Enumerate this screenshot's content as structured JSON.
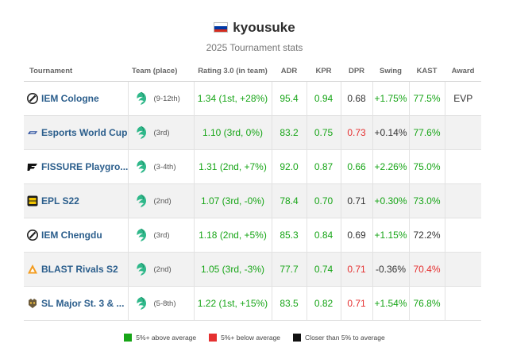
{
  "player": {
    "name": "kyousuke",
    "flag_colors": [
      "#ffffff",
      "#0039a6",
      "#d52b1e"
    ]
  },
  "subtitle": "2025 Tournament stats",
  "columns": {
    "tournament": "Tournament",
    "team": "Team (place)",
    "rating": "Rating 3.0 (in team)",
    "adr": "ADR",
    "kpr": "KPR",
    "dpr": "DPR",
    "swing": "Swing",
    "kast": "KAST",
    "award": "Award"
  },
  "rows": [
    {
      "tournament": "IEM Cologne",
      "logo": "iem-logo-icon",
      "place": "(9-12th)",
      "rating": "1.34 (1st, +28%)",
      "rating_class": "green",
      "adr": "95.4",
      "adr_class": "green",
      "kpr": "0.94",
      "kpr_class": "green",
      "dpr": "0.68",
      "dpr_class": "black",
      "swing": "+1.75%",
      "swing_class": "green",
      "kast": "77.5%",
      "kast_class": "green",
      "award": "EVP"
    },
    {
      "tournament": "Esports World Cup",
      "logo": "ewc-logo-icon",
      "place": "(3rd)",
      "rating": "1.10 (3rd, 0%)",
      "rating_class": "green",
      "adr": "83.2",
      "adr_class": "green",
      "kpr": "0.75",
      "kpr_class": "green",
      "dpr": "0.73",
      "dpr_class": "red",
      "swing": "+0.14%",
      "swing_class": "black",
      "kast": "77.6%",
      "kast_class": "green",
      "award": ""
    },
    {
      "tournament": "FISSURE Playgro...",
      "logo": "fissure-logo-icon",
      "place": "(3-4th)",
      "rating": "1.31 (2nd, +7%)",
      "rating_class": "green",
      "adr": "92.0",
      "adr_class": "green",
      "kpr": "0.87",
      "kpr_class": "green",
      "dpr": "0.66",
      "dpr_class": "green",
      "swing": "+2.26%",
      "swing_class": "green",
      "kast": "75.0%",
      "kast_class": "green",
      "award": ""
    },
    {
      "tournament": "EPL S22",
      "logo": "epl-logo-icon",
      "place": "(2nd)",
      "rating": "1.07 (3rd, -0%)",
      "rating_class": "green",
      "adr": "78.4",
      "adr_class": "green",
      "kpr": "0.70",
      "kpr_class": "green",
      "dpr": "0.71",
      "dpr_class": "black",
      "swing": "+0.30%",
      "swing_class": "green",
      "kast": "73.0%",
      "kast_class": "green",
      "award": ""
    },
    {
      "tournament": "IEM Chengdu",
      "logo": "iem-logo-icon",
      "place": "(3rd)",
      "rating": "1.18 (2nd, +5%)",
      "rating_class": "green",
      "adr": "85.3",
      "adr_class": "green",
      "kpr": "0.84",
      "kpr_class": "green",
      "dpr": "0.69",
      "dpr_class": "black",
      "swing": "+1.15%",
      "swing_class": "green",
      "kast": "72.2%",
      "kast_class": "black",
      "award": ""
    },
    {
      "tournament": "BLAST Rivals S2",
      "logo": "blast-logo-icon",
      "place": "(2nd)",
      "rating": "1.05 (3rd, -3%)",
      "rating_class": "green",
      "adr": "77.7",
      "adr_class": "green",
      "kpr": "0.74",
      "kpr_class": "green",
      "dpr": "0.71",
      "dpr_class": "red",
      "swing": "-0.36%",
      "swing_class": "black",
      "kast": "70.4%",
      "kast_class": "red",
      "award": ""
    },
    {
      "tournament": "SL Major St. 3 & ...",
      "logo": "sl-logo-icon",
      "place": "(5-8th)",
      "rating": "1.22 (1st, +15%)",
      "rating_class": "green",
      "adr": "83.5",
      "adr_class": "green",
      "kpr": "0.82",
      "kpr_class": "green",
      "dpr": "0.71",
      "dpr_class": "red",
      "swing": "+1.54%",
      "swing_class": "green",
      "kast": "76.8%",
      "kast_class": "green",
      "award": ""
    }
  ],
  "legend": {
    "above": "5%+ above average",
    "below": "5%+ below average",
    "closer": "Closer than 5% to average"
  },
  "colors": {
    "above": "#17a517",
    "below": "#e53030",
    "closer": "#111111",
    "link": "#2b5e8c"
  }
}
